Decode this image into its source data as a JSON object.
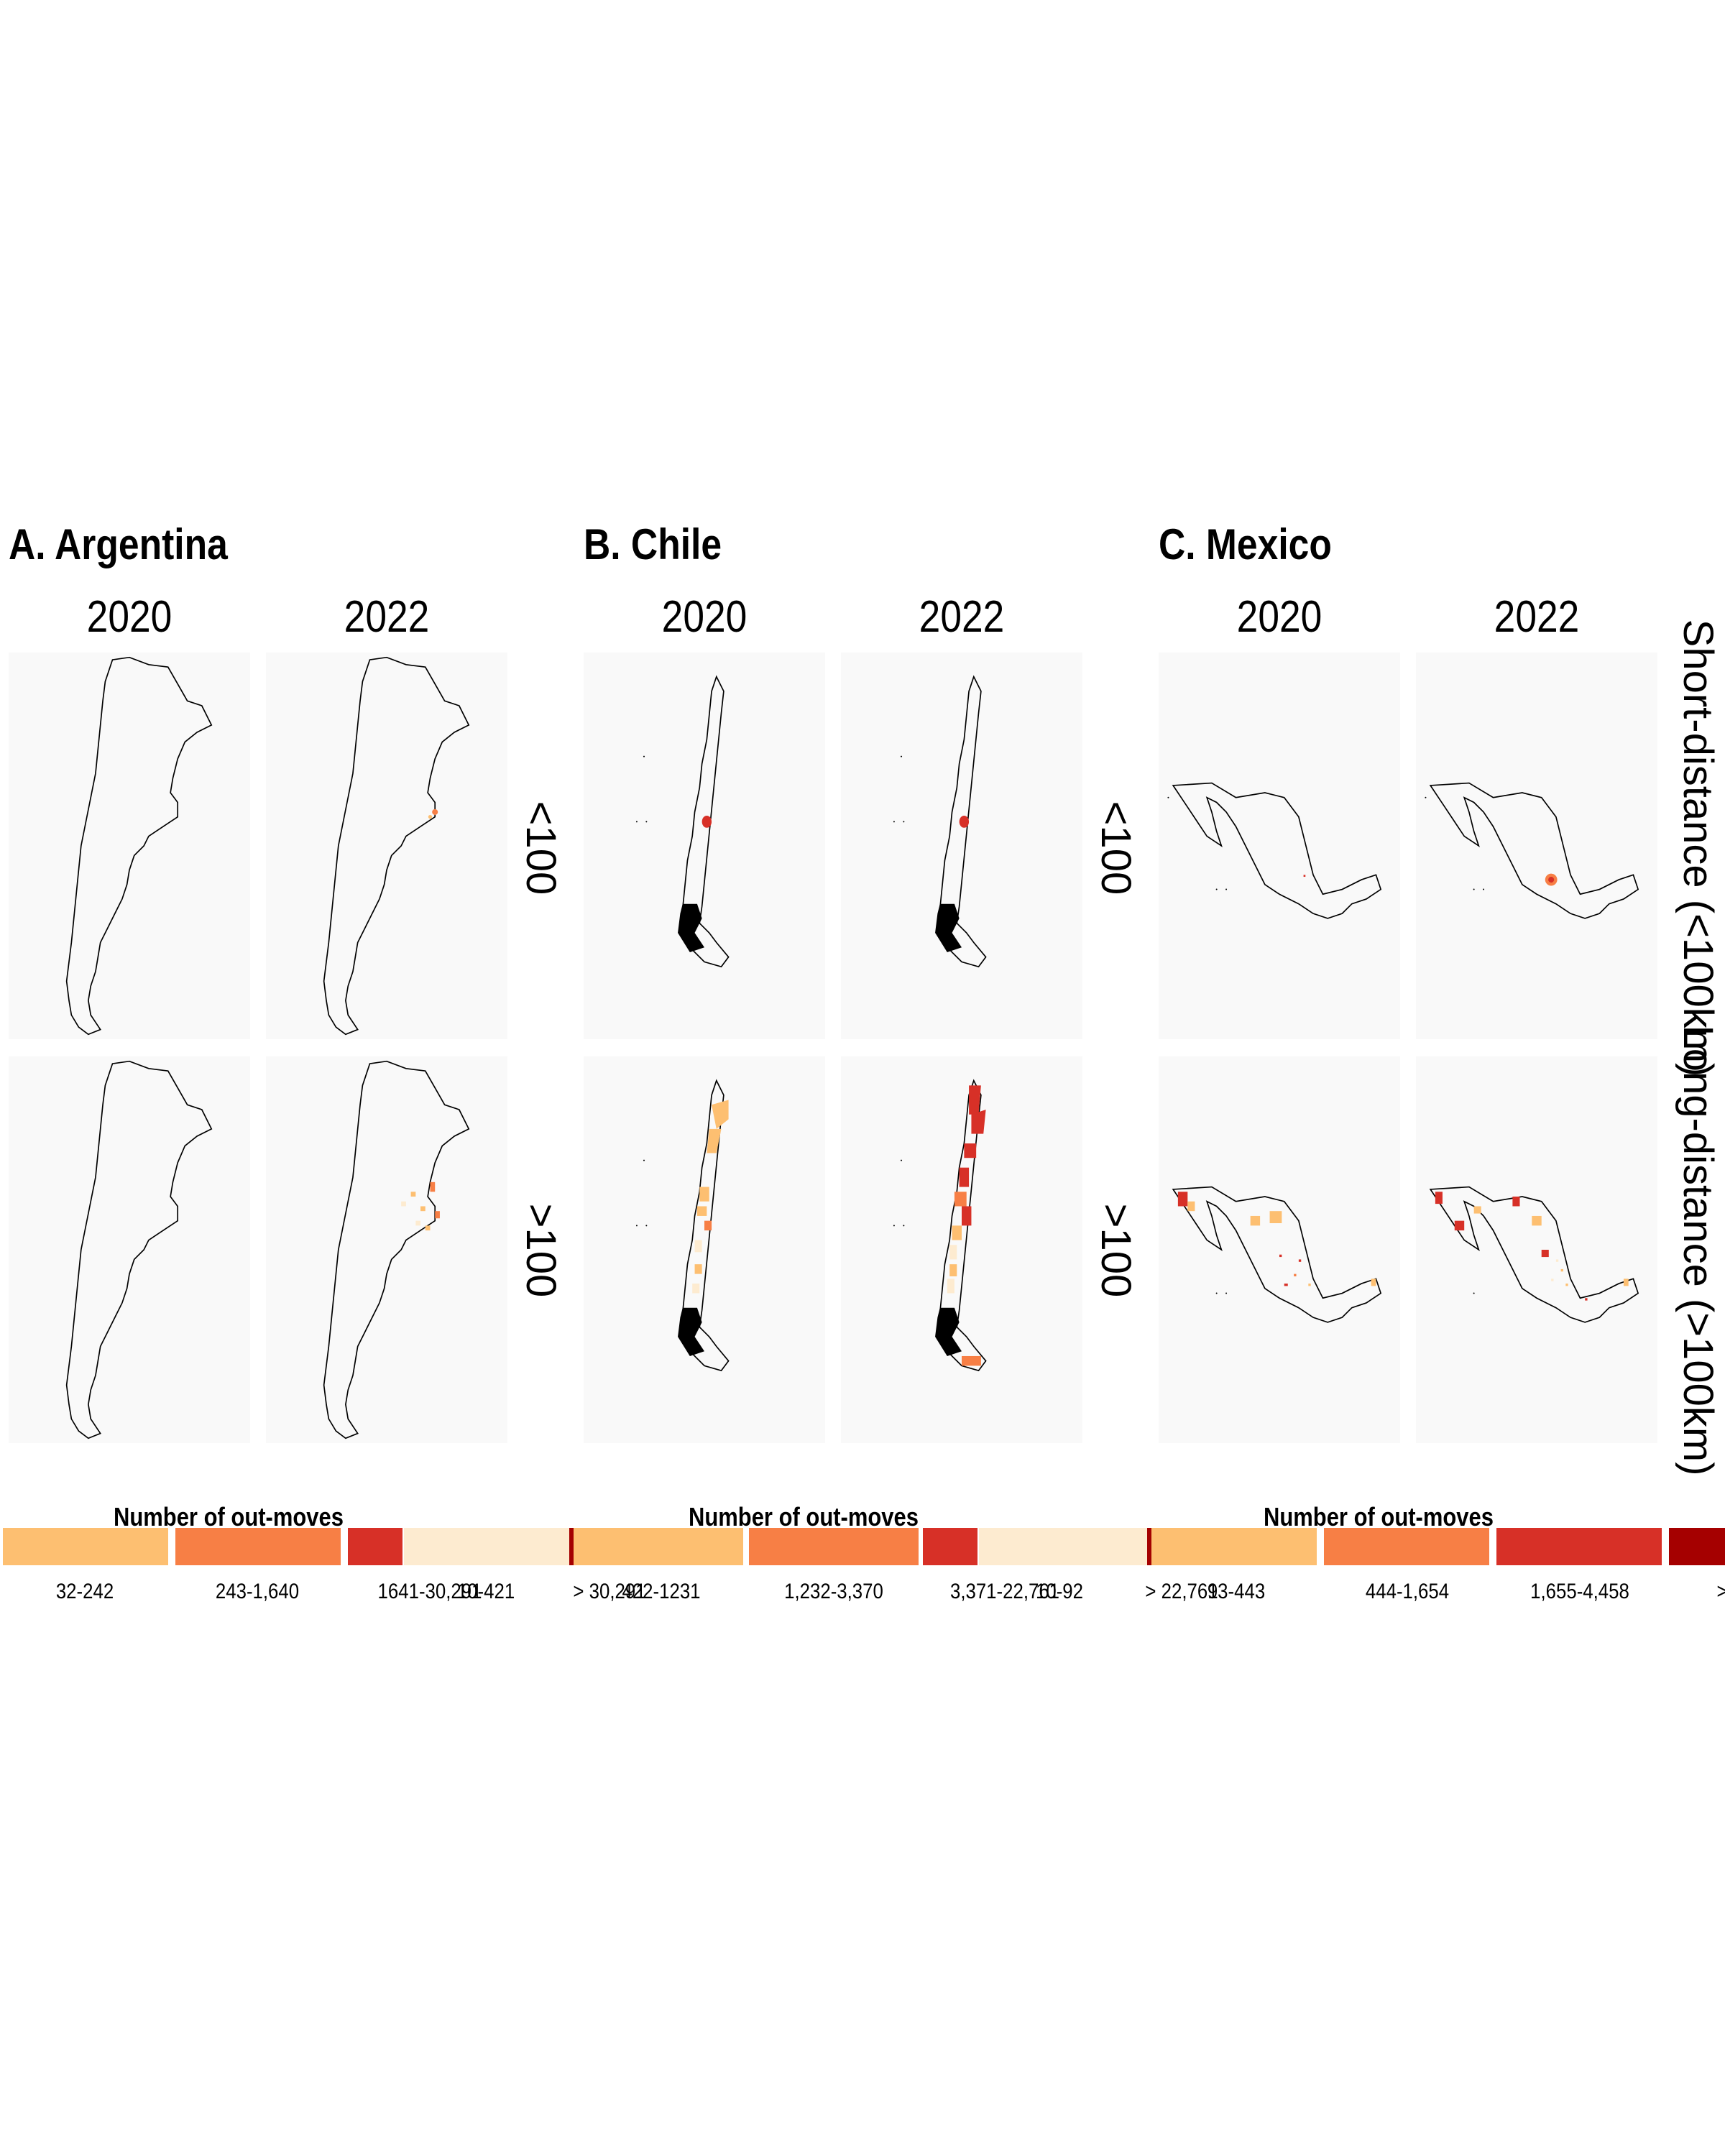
{
  "panels": [
    {
      "title": "A. Argentina",
      "country": "argentina"
    },
    {
      "title": "B. Chile",
      "country": "chile"
    },
    {
      "title": "C. Mexico",
      "country": "mexico"
    }
  ],
  "years": [
    "2020",
    "2022"
  ],
  "row_labels": [
    "<100",
    ">100"
  ],
  "strip_labels": [
    "Short-distance (<100km)",
    "Long-distance (>100km)"
  ],
  "colors": {
    "bin1": "#fdbf71",
    "bin2": "#f77f45",
    "bin3": "#d73027",
    "bin4": "#fdebd0",
    "bin5": "#a50000",
    "facet_bg": "#f9f9f9",
    "outline": "#000000"
  },
  "legends": [
    {
      "title": "Number of  out-moves",
      "labels": [
        "32-242",
        "243-1,640",
        "1641-30,291",
        "> 30,291"
      ],
      "extra": "10-421"
    },
    {
      "title": "Number of  out-moves",
      "labels": [
        "422-1231",
        "1,232-3,370",
        "3,371-22,761",
        "> 22,761"
      ],
      "extra": "10-92"
    },
    {
      "title": "Number of  out-moves",
      "labels": [
        "93-443",
        "444-1,654",
        "1,655-4,458",
        ">"
      ]
    }
  ]
}
